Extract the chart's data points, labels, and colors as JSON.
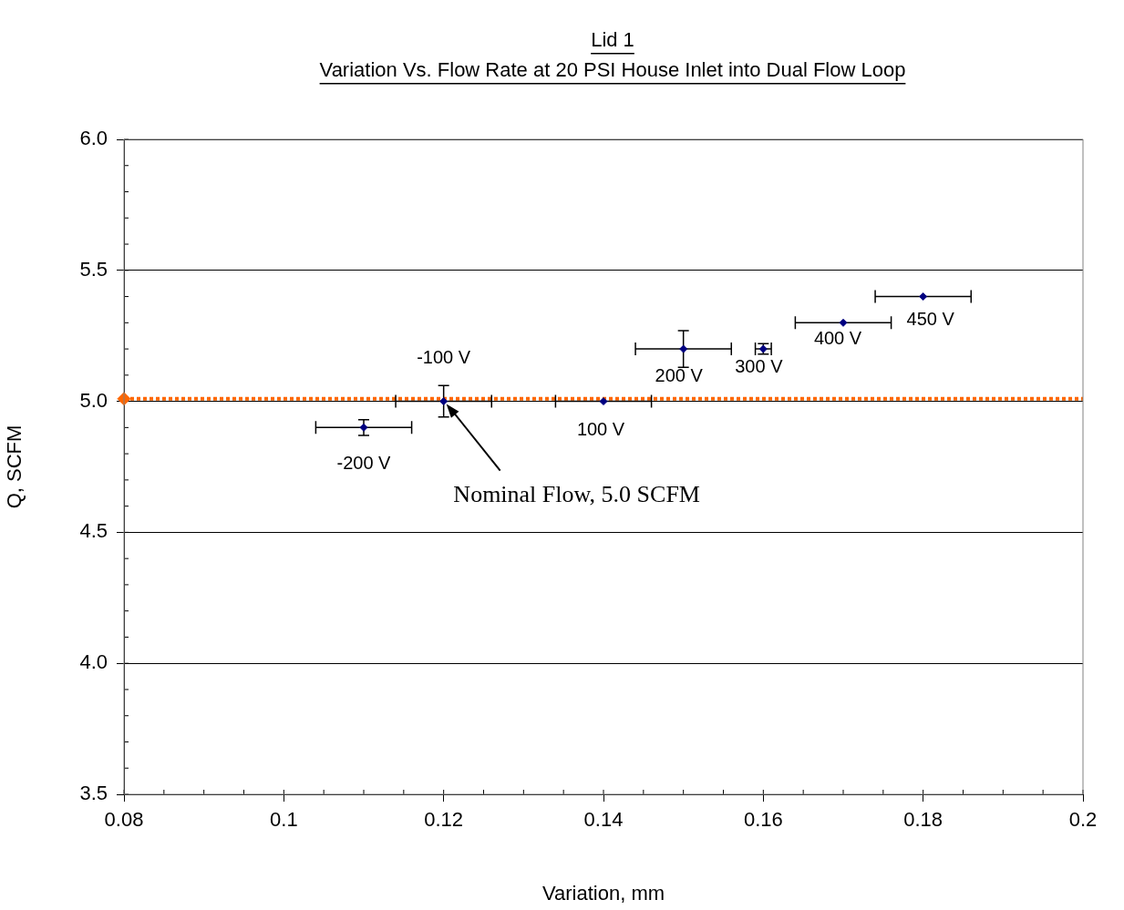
{
  "chart_data": {
    "type": "scatter",
    "title": "Lid 1",
    "subtitle": "Variation Vs. Flow Rate at 20 PSI House Inlet into Dual Flow Loop",
    "xlabel": "Variation, mm",
    "ylabel": "Q, SCFM",
    "x": [
      0.11,
      0.12,
      0.14,
      0.15,
      0.16,
      0.17,
      0.18
    ],
    "series": [
      {
        "color": "#000080",
        "values": [
          4.9,
          5.0,
          5.0,
          5.2,
          5.2,
          5.3,
          5.4
        ],
        "errors": [
          0.03,
          0.06,
          null,
          0.07,
          0.02,
          null,
          null
        ],
        "xerrors": [
          0.006,
          0.006,
          0.006,
          0.006,
          0.001,
          0.006,
          0.006
        ]
      },
      {
        "color": "#ff6600",
        "x": [
          0.08
        ],
        "values": [
          5.01
        ]
      }
    ],
    "marker": "diamond",
    "xlim": [
      0.08,
      0.2
    ],
    "xticks": [
      0.08,
      0.1,
      0.12,
      0.14,
      0.16,
      0.18,
      0.2
    ],
    "ylim": [
      3.5,
      6.0
    ],
    "yticks": [
      {
        "value": 3.5,
        "label": "3.5"
      },
      {
        "value": 4,
        "label": "4.0"
      },
      {
        "value": 4.5,
        "label": "4.5"
      },
      {
        "value": 5,
        "label": "5.0"
      },
      {
        "value": 5.5,
        "label": "5.5"
      },
      {
        "value": 6,
        "label": "6.0"
      }
    ],
    "grid": "y",
    "legend": false,
    "ref_lines": [
      {
        "axis": "y",
        "value": 5.01,
        "color": "#ff6600",
        "line_style": "dotted"
      }
    ],
    "annotations": [
      {
        "text": "-200 V",
        "x": 0.11,
        "y": 4.9
      },
      {
        "text": "-100 V",
        "x": 0.12,
        "y": 5.0
      },
      {
        "text": "100 V",
        "x": 0.14,
        "y": 5.0
      },
      {
        "text": "200 V",
        "x": 0.15,
        "y": 5.2
      },
      {
        "text": "300 V",
        "x": 0.16,
        "y": 5.2
      },
      {
        "text": "400 V",
        "x": 0.17,
        "y": 5.3
      },
      {
        "text": "450 V",
        "x": 0.18,
        "y": 5.4
      },
      {
        "text": "Nominal Flow, 5.0 SCFM",
        "x": 0.12,
        "y": 5.0
      }
    ]
  }
}
